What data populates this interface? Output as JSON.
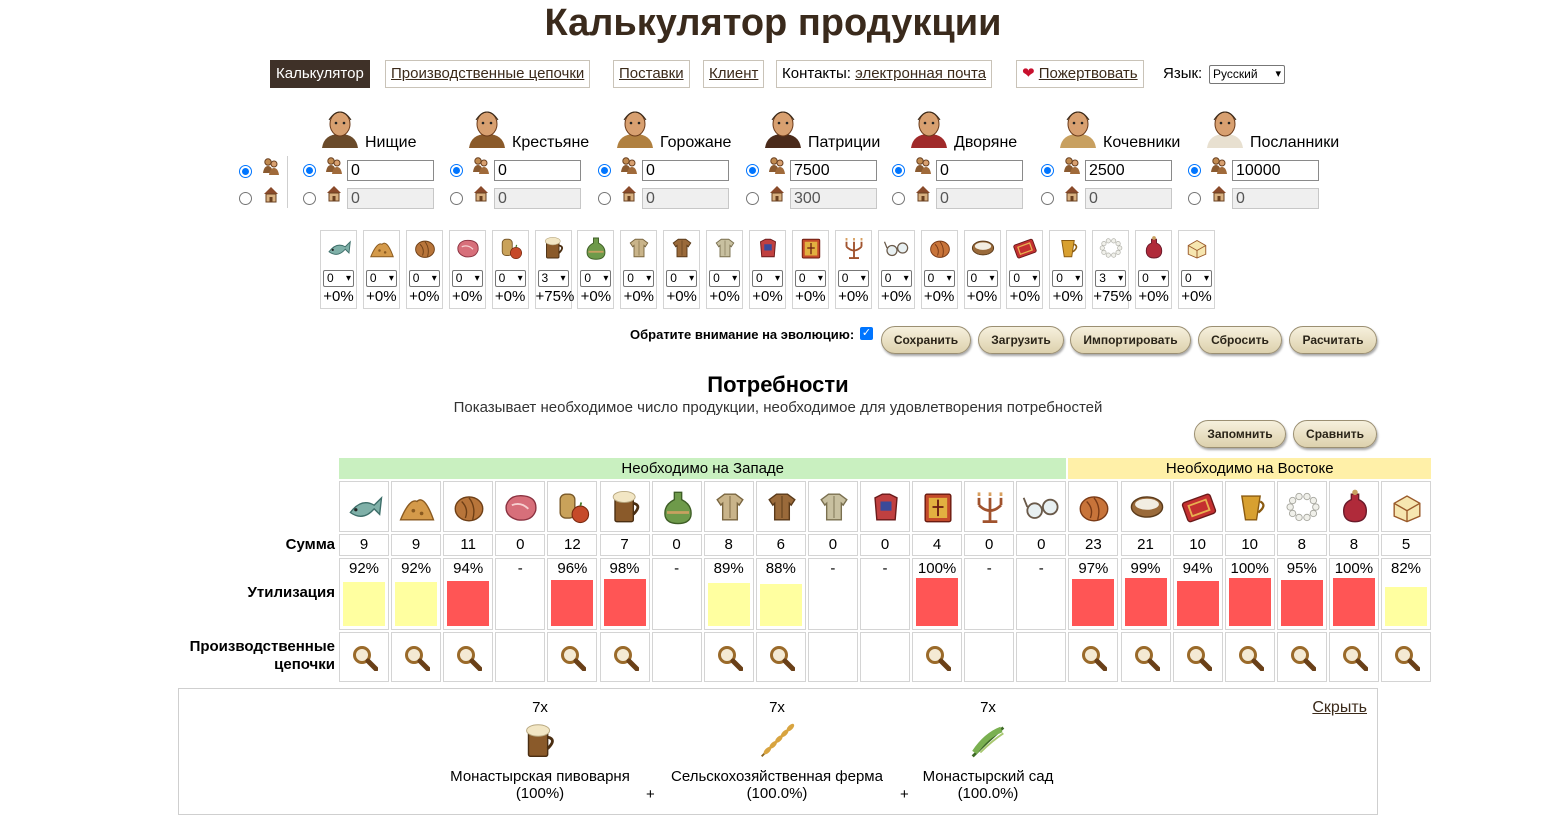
{
  "page": {
    "title": "Калькулятор продукции"
  },
  "nav": {
    "calculator": "Калькулятор",
    "chains": "Производственные цепочки",
    "supplies": "Поставки",
    "client": "Клиент",
    "contacts_prefix": "Контакты:",
    "contacts_link": "электронная почта",
    "donate": "Пожертвовать",
    "lang_label": "Язык:",
    "lang_value": "Русский"
  },
  "population": [
    {
      "name": "Нищие",
      "residents": "0",
      "houses": "0"
    },
    {
      "name": "Крестьяне",
      "residents": "0",
      "houses": "0"
    },
    {
      "name": "Горожане",
      "residents": "0",
      "houses": "0"
    },
    {
      "name": "Патриции",
      "residents": "7500",
      "houses": "300"
    },
    {
      "name": "Дворяне",
      "residents": "0",
      "houses": "0"
    },
    {
      "name": "Кочевники",
      "residents": "2500",
      "houses": "0"
    },
    {
      "name": "Посланники",
      "residents": "10000",
      "houses": "0"
    }
  ],
  "goods": [
    {
      "icon": "fish-icon",
      "level": "0",
      "bonus": "+0%"
    },
    {
      "icon": "spices-icon",
      "level": "0",
      "bonus": "+0%"
    },
    {
      "icon": "bread-icon",
      "level": "0",
      "bonus": "+0%"
    },
    {
      "icon": "meat-icon",
      "level": "0",
      "bonus": "+0%"
    },
    {
      "icon": "cider-icon",
      "level": "0",
      "bonus": "+0%"
    },
    {
      "icon": "beer-icon",
      "level": "3",
      "bonus": "+75%"
    },
    {
      "icon": "wine-icon",
      "level": "0",
      "bonus": "+0%"
    },
    {
      "icon": "linen-garments-icon",
      "level": "0",
      "bonus": "+0%"
    },
    {
      "icon": "leather-jerkins-icon",
      "level": "0",
      "bonus": "+0%"
    },
    {
      "icon": "fur-coats-icon",
      "level": "0",
      "bonus": "+0%"
    },
    {
      "icon": "brocade-robes-icon",
      "level": "0",
      "bonus": "+0%"
    },
    {
      "icon": "books-icon",
      "level": "0",
      "bonus": "+0%"
    },
    {
      "icon": "candlesticks-icon",
      "level": "0",
      "bonus": "+0%"
    },
    {
      "icon": "glasses-icon",
      "level": "0",
      "bonus": "+0%"
    },
    {
      "icon": "dates-icon",
      "level": "0",
      "bonus": "+0%"
    },
    {
      "icon": "milk-icon",
      "level": "0",
      "bonus": "+0%"
    },
    {
      "icon": "carpets-icon",
      "level": "0",
      "bonus": "+0%"
    },
    {
      "icon": "coffee-icon",
      "level": "0",
      "bonus": "+0%"
    },
    {
      "icon": "pearl-necklaces-icon",
      "level": "3",
      "bonus": "+75%"
    },
    {
      "icon": "perfume-icon",
      "level": "0",
      "bonus": "+0%"
    },
    {
      "icon": "marzipan-icon",
      "level": "0",
      "bonus": "+0%"
    }
  ],
  "controls": {
    "evolution_label": "Обратите внимание на эволюцию:",
    "save": "Сохранить",
    "load": "Загрузить",
    "import": "Импортировать",
    "reset": "Сбросить",
    "calculate": "Расчитать"
  },
  "needs": {
    "title": "Потребности",
    "description": "Показывает необходимое число продукции, необходимое для удовлетворения потребностей",
    "remember": "Запомнить",
    "compare": "Сравнить",
    "west_header": "Необходимо на Западе",
    "east_header": "Необходимо на Востоке",
    "label_sum": "Сумма",
    "label_util": "Утилизация",
    "label_chains_1": "Производственные",
    "label_chains_2": "цепочки",
    "colors": {
      "high": "#ff5555",
      "mid": "#ffffa0",
      "west": "#c9f0c0",
      "east": "#fff0a8"
    },
    "items": [
      {
        "icon": "fish-icon",
        "sum": "9",
        "util": "92%",
        "level": 0.92,
        "status": "mid",
        "chain": true
      },
      {
        "icon": "spices-icon",
        "sum": "9",
        "util": "92%",
        "level": 0.92,
        "status": "mid",
        "chain": true
      },
      {
        "icon": "bread-icon",
        "sum": "11",
        "util": "94%",
        "level": 0.94,
        "status": "high",
        "chain": true
      },
      {
        "icon": "meat-icon",
        "sum": "0",
        "util": "-",
        "level": 0,
        "status": "none",
        "chain": false
      },
      {
        "icon": "cider-icon",
        "sum": "12",
        "util": "96%",
        "level": 0.96,
        "status": "high",
        "chain": true
      },
      {
        "icon": "beer-icon",
        "sum": "7",
        "util": "98%",
        "level": 0.98,
        "status": "high",
        "chain": true
      },
      {
        "icon": "wine-icon",
        "sum": "0",
        "util": "-",
        "level": 0,
        "status": "none",
        "chain": false
      },
      {
        "icon": "linen-garments-icon",
        "sum": "8",
        "util": "89%",
        "level": 0.89,
        "status": "mid",
        "chain": true
      },
      {
        "icon": "leather-jerkins-icon",
        "sum": "6",
        "util": "88%",
        "level": 0.88,
        "status": "mid",
        "chain": true
      },
      {
        "icon": "fur-coats-icon",
        "sum": "0",
        "util": "-",
        "level": 0,
        "status": "none",
        "chain": false
      },
      {
        "icon": "brocade-robes-icon",
        "sum": "0",
        "util": "-",
        "level": 0,
        "status": "none",
        "chain": false
      },
      {
        "icon": "books-icon",
        "sum": "4",
        "util": "100%",
        "level": 1.0,
        "status": "high",
        "chain": true
      },
      {
        "icon": "candlesticks-icon",
        "sum": "0",
        "util": "-",
        "level": 0,
        "status": "none",
        "chain": false
      },
      {
        "icon": "glasses-icon",
        "sum": "0",
        "util": "-",
        "level": 0,
        "status": "none",
        "chain": false
      },
      {
        "icon": "dates-icon",
        "sum": "23",
        "util": "97%",
        "level": 0.97,
        "status": "high",
        "chain": true
      },
      {
        "icon": "milk-icon",
        "sum": "21",
        "util": "99%",
        "level": 0.99,
        "status": "high",
        "chain": true
      },
      {
        "icon": "carpets-icon",
        "sum": "10",
        "util": "94%",
        "level": 0.94,
        "status": "high",
        "chain": true
      },
      {
        "icon": "coffee-icon",
        "sum": "10",
        "util": "100%",
        "level": 1.0,
        "status": "high",
        "chain": true
      },
      {
        "icon": "pearl-necklaces-icon",
        "sum": "8",
        "util": "95%",
        "level": 0.95,
        "status": "high",
        "chain": true
      },
      {
        "icon": "perfume-icon",
        "sum": "8",
        "util": "100%",
        "level": 1.0,
        "status": "high",
        "chain": true
      },
      {
        "icon": "marzipan-icon",
        "sum": "5",
        "util": "82%",
        "level": 0.82,
        "status": "mid",
        "chain": true
      }
    ]
  },
  "chain_panel": {
    "hide": "Скрыть",
    "plus": "+",
    "items": [
      {
        "icon": "beer-icon",
        "count": "7x",
        "name": "Монастырская пивоварня",
        "eff": "(100%)"
      },
      {
        "icon": "wheat-icon",
        "count": "7x",
        "name": "Сельскохозяйственная ферма",
        "eff": "(100.0%)"
      },
      {
        "icon": "hops-icon",
        "count": "7x",
        "name": "Монастырский сад",
        "eff": "(100.0%)"
      }
    ]
  }
}
